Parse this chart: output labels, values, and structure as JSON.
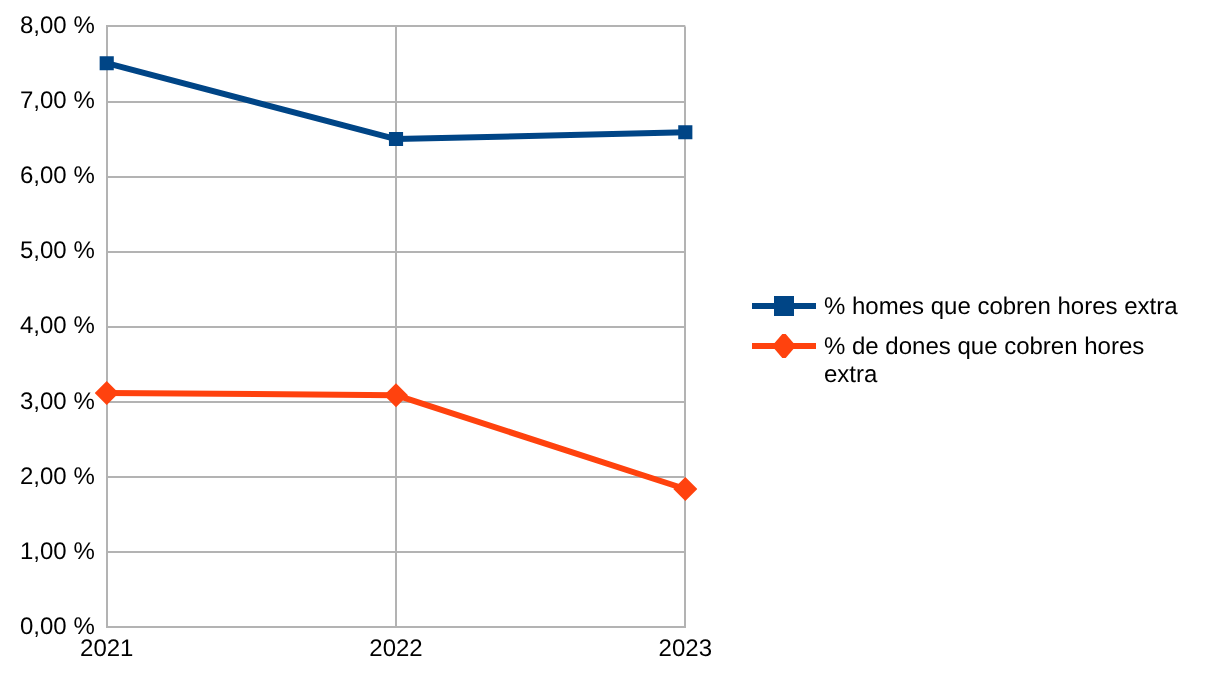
{
  "chart_data": {
    "type": "line",
    "categories": [
      "2021",
      "2022",
      "2023"
    ],
    "series": [
      {
        "name": "% homes que cobren hores extra",
        "color": "#004586",
        "marker": "square",
        "values": [
          7.51,
          6.5,
          6.59
        ]
      },
      {
        "name": "% de dones que cobren hores extra",
        "color": "#ff420e",
        "marker": "diamond",
        "values": [
          3.12,
          3.09,
          1.84
        ]
      }
    ],
    "ylim": [
      0,
      8
    ],
    "yticks": [
      {
        "value": 0,
        "label": "0,00 %"
      },
      {
        "value": 1,
        "label": "1,00 %"
      },
      {
        "value": 2,
        "label": "2,00 %"
      },
      {
        "value": 3,
        "label": "3,00 %"
      },
      {
        "value": 4,
        "label": "4,00 %"
      },
      {
        "value": 5,
        "label": "5,00 %"
      },
      {
        "value": 6,
        "label": "6,00 %"
      },
      {
        "value": 7,
        "label": "7,00 %"
      },
      {
        "value": 8,
        "label": "8,00 %"
      }
    ],
    "grid": true,
    "legend": "right",
    "line_style": "solid"
  }
}
